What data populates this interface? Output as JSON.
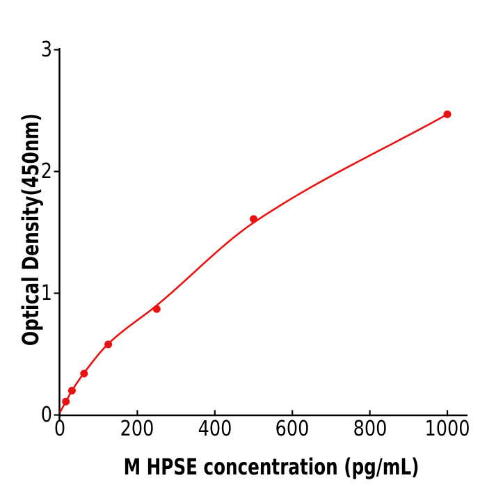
{
  "chart_data": {
    "type": "scatter",
    "title": "",
    "xlabel": "M  HPSE concentration (pg/mL)",
    "ylabel": "Optical Density(450nm)",
    "x_ticks": [
      0,
      200,
      400,
      600,
      800,
      1000
    ],
    "y_ticks": [
      0,
      1,
      2,
      3
    ],
    "xlim": [
      0,
      1052
    ],
    "ylim": [
      0,
      3
    ],
    "grid": false,
    "legend_position": "none",
    "series": [
      {
        "marker": "circle",
        "color": "#ea1110",
        "points": [
          {
            "x": 15.6,
            "y": 0.11
          },
          {
            "x": 31.25,
            "y": 0.2
          },
          {
            "x": 62.5,
            "y": 0.34
          },
          {
            "x": 125,
            "y": 0.58
          },
          {
            "x": 250,
            "y": 0.87
          },
          {
            "x": 500,
            "y": 1.61
          },
          {
            "x": 1000,
            "y": 2.47
          }
        ],
        "fit_curve": [
          {
            "x": 0,
            "y": 0.02
          },
          {
            "x": 15.6,
            "y": 0.11
          },
          {
            "x": 31.25,
            "y": 0.2
          },
          {
            "x": 62.5,
            "y": 0.345
          },
          {
            "x": 125,
            "y": 0.585
          },
          {
            "x": 250,
            "y": 0.9
          },
          {
            "x": 500,
            "y": 1.58
          },
          {
            "x": 1000,
            "y": 2.47
          }
        ]
      }
    ]
  },
  "colors": {
    "background": "#ffffff",
    "axis": "#000000",
    "text": "#000000",
    "curve": "#ea1110"
  }
}
